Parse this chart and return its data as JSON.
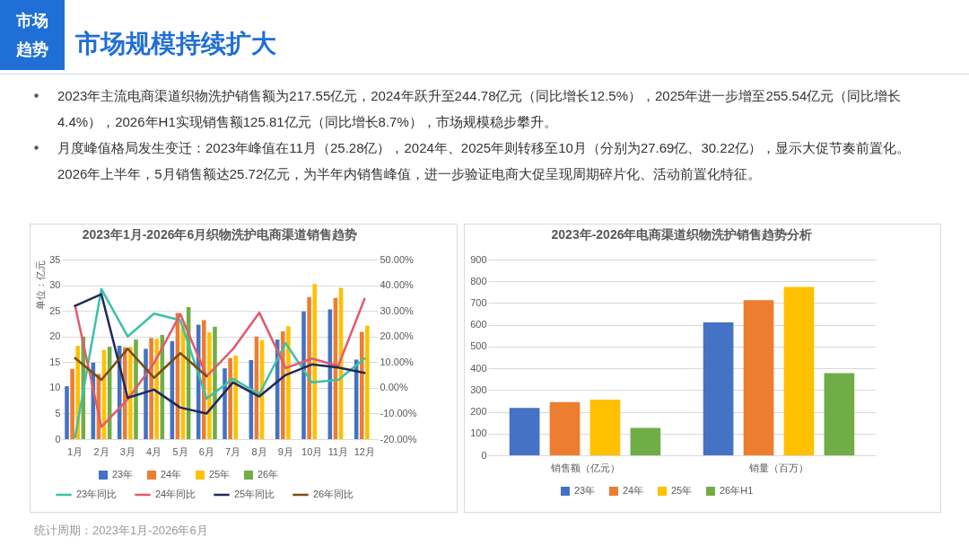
{
  "chart_data": [
    {
      "type": "other",
      "title": "市场规模持续扩大",
      "annotations": [
        "市场趋势",
        "2023年主流电商渠道织物洗护销售额为217.55亿元，2024年跃升至244.78亿元（同比增长12.5%），2025年进一步增至255.54亿元（同比增长4.4%），2026年H1实现销售额125.81亿元（同比增长8.7%），市场规模稳步攀升。",
        "月度峰值格局发生变迁：2023年峰值在11月（25.28亿），2024年、2025年则转移至10月（分别为27.69亿、30.22亿），显示大促节奏前置化。2026年上半年，5月销售额达25.72亿元，为半年内销售峰值，进一步验证电商大促呈现周期碎片化、活动前置化特征。",
        "统计周期：2023年1月-2026年6月"
      ]
    },
    {
      "type": "bar",
      "title": "2023年1月-2026年6月织物洗护电商渠道销售趋势",
      "ylabel": "单位：亿元",
      "categories": [
        "1月",
        "2月",
        "3月",
        "4月",
        "5月",
        "6月",
        "7月",
        "8月",
        "9月",
        "10月",
        "11月",
        "12月"
      ],
      "ylim": [
        0,
        35
      ],
      "yticks": [
        0,
        5,
        10,
        15,
        20,
        25,
        30,
        35
      ],
      "y2lim": [
        -20,
        50
      ],
      "y2ticks": [
        {
          "value": -20,
          "label": "-20.00%"
        },
        {
          "value": -10,
          "label": "-10.00%"
        },
        {
          "value": 0,
          "label": "0.00%"
        },
        {
          "value": 10,
          "label": "10.00%"
        },
        {
          "value": 20,
          "label": "20.00%"
        },
        {
          "value": 30,
          "label": "30.00%"
        },
        {
          "value": 40,
          "label": "40.00%"
        },
        {
          "value": 50,
          "label": "50.00%"
        }
      ],
      "grid": "y",
      "legend": "bottom",
      "series": [
        {
          "name": "23年",
          "color": "#4472c4",
          "values": [
            10.3,
            14.9,
            18.2,
            17.6,
            19.1,
            22.3,
            13.8,
            15.4,
            19.4,
            24.9,
            25.28,
            15.5
          ]
        },
        {
          "name": "24年",
          "color": "#ed7d31",
          "values": [
            13.7,
            12.7,
            17.9,
            19.7,
            24.6,
            23.2,
            15.8,
            20.0,
            21.0,
            27.69,
            27.5,
            20.9
          ]
        },
        {
          "name": "25年",
          "color": "#ffc000",
          "values": [
            18.2,
            17.4,
            18.0,
            19.6,
            22.5,
            20.8,
            16.3,
            19.3,
            22.0,
            30.22,
            29.5,
            22.1
          ]
        },
        {
          "name": "26年",
          "color": "#70ad47",
          "values": [
            20.0,
            18.0,
            19.4,
            20.3,
            25.72,
            21.9,
            null,
            null,
            null,
            null,
            null,
            null
          ]
        },
        {
          "name": "23年同比",
          "type": "line",
          "axis": "y2",
          "color": "#3cc1a7",
          "values": [
            -19.2,
            38.5,
            20.0,
            28.9,
            26.4,
            -4.2,
            3.5,
            -2.5,
            17.4,
            2.1,
            3.1,
            11.4
          ]
        },
        {
          "name": "24年同比",
          "type": "line",
          "axis": "y2",
          "color": "#e25a6e",
          "values": [
            32.1,
            -15.2,
            -4.5,
            9.6,
            28.7,
            4.5,
            15.1,
            29.3,
            7.7,
            11.4,
            8.5,
            34.7
          ]
        },
        {
          "name": "25年同比",
          "type": "line",
          "axis": "y2",
          "color": "#1f2a5c",
          "values": [
            31.9,
            36.5,
            -3.9,
            -0.7,
            -7.7,
            -10.0,
            2.1,
            -3.4,
            5.0,
            9.1,
            7.9,
            5.8
          ]
        },
        {
          "name": "26年同比",
          "type": "line",
          "axis": "y2",
          "color": "#7b4c13",
          "values": [
            11.6,
            3.1,
            15.2,
            3.9,
            13.5,
            4.5,
            null,
            null,
            null,
            null,
            null,
            null
          ]
        }
      ]
    },
    {
      "type": "bar",
      "title": "2023年-2026年电商渠道织物洗护销售趋势分析",
      "categories": [
        "销售额（亿元）",
        "销量（百万）"
      ],
      "ylim": [
        0,
        900
      ],
      "yticks": [
        0,
        100,
        200,
        300,
        400,
        500,
        600,
        700,
        800,
        900
      ],
      "grid": "y",
      "legend": "bottom",
      "series": [
        {
          "name": "23年",
          "color": "#4472c4",
          "values": [
            217.55,
            611
          ]
        },
        {
          "name": "24年",
          "color": "#ed7d31",
          "values": [
            244.78,
            713
          ]
        },
        {
          "name": "25年",
          "color": "#ffc000",
          "values": [
            255.54,
            774
          ]
        },
        {
          "name": "26年H1",
          "color": "#70ad47",
          "values": [
            125.81,
            378
          ]
        }
      ]
    }
  ]
}
